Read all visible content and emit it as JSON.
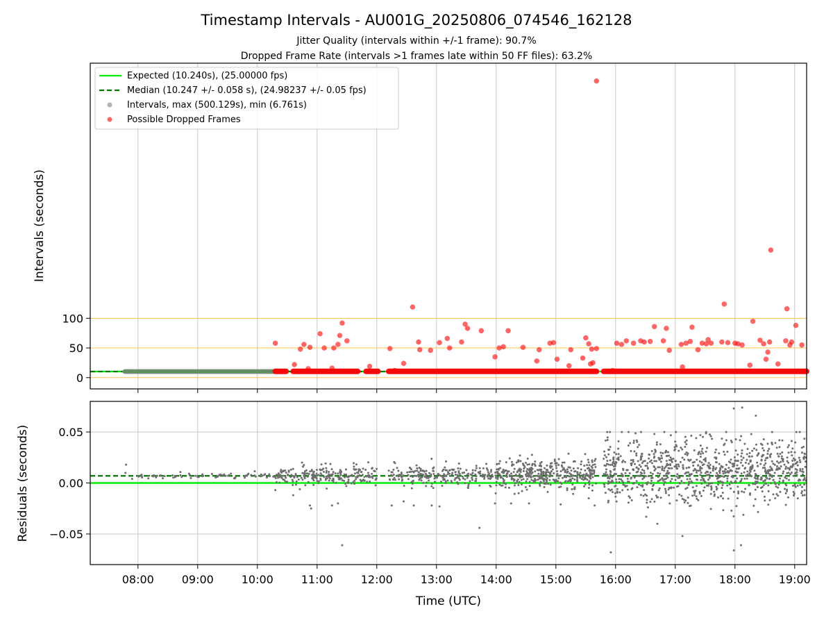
{
  "colors": {
    "expected": "#00ee00",
    "median": "#007700",
    "intervals": "#9a9a9a",
    "dropped": "#ff0000",
    "residuals": "#6e6e6e",
    "threshold": "#ffc04d",
    "grid": "#c8c8c8"
  },
  "chart_data": [
    {
      "type": "scatter",
      "title": "Timestamp Intervals - AU001G_20250806_074546_162128",
      "subtitle_lines": [
        "Jitter Quality (intervals within +/-1 frame): 90.7%",
        "Dropped Frame Rate (intervals >1 frames late within 50 FF files): 63.2%"
      ],
      "ylabel": "Intervals (seconds)",
      "xlabel": "",
      "x_unit": "hours UTC",
      "xlim": [
        7.2,
        19.2
      ],
      "ylim": [
        -19,
        530
      ],
      "yticks": [
        0,
        50,
        100
      ],
      "ytick_labels": [
        "0",
        "50",
        "100"
      ],
      "hlines_threshold": [
        0,
        50,
        100
      ],
      "grid": "vertical",
      "legend_placement": "top-left",
      "legend": [
        "Expected (10.240s), (25.00000 fps)",
        "Median (10.247 +/- 0.058 s), (24.98237 +/- 0.05 fps)",
        "Intervals, max (500.129s), min (6.761s)",
        "Possible Dropped Frames"
      ],
      "expected_value": 10.24,
      "median_value": 10.247,
      "series": [
        {
          "name": "Intervals, max (500.129s), min (6.761s)",
          "segments": [
            [
              7.78,
              10.32
            ],
            [
              10.32,
              10.48
            ],
            [
              10.62,
              11.65
            ],
            [
              11.85,
              12.02
            ],
            [
              12.22,
              15.68
            ],
            [
              15.82,
              19.2
            ]
          ],
          "value": 10.24
        },
        {
          "name": "Possible Dropped Frames",
          "bands": [
            [
              10.3,
              10.48
            ],
            [
              10.6,
              11.68
            ],
            [
              11.82,
              12.02
            ],
            [
              12.2,
              15.68
            ],
            [
              15.8,
              19.2
            ]
          ],
          "band_value": 10.5,
          "points": [
            {
              "x": 10.3,
              "y": 58
            },
            {
              "x": 10.62,
              "y": 22
            },
            {
              "x": 10.72,
              "y": 48
            },
            {
              "x": 10.78,
              "y": 56
            },
            {
              "x": 10.88,
              "y": 51
            },
            {
              "x": 10.85,
              "y": 15
            },
            {
              "x": 11.05,
              "y": 74
            },
            {
              "x": 11.12,
              "y": 50
            },
            {
              "x": 11.28,
              "y": 50
            },
            {
              "x": 11.35,
              "y": 56
            },
            {
              "x": 11.38,
              "y": 71
            },
            {
              "x": 11.42,
              "y": 92
            },
            {
              "x": 11.5,
              "y": 62
            },
            {
              "x": 11.25,
              "y": 16
            },
            {
              "x": 11.88,
              "y": 19
            },
            {
              "x": 12.22,
              "y": 49
            },
            {
              "x": 12.3,
              "y": 12
            },
            {
              "x": 12.45,
              "y": 24
            },
            {
              "x": 12.6,
              "y": 119
            },
            {
              "x": 12.7,
              "y": 60
            },
            {
              "x": 12.72,
              "y": 47
            },
            {
              "x": 12.9,
              "y": 46
            },
            {
              "x": 13.05,
              "y": 59
            },
            {
              "x": 13.18,
              "y": 66
            },
            {
              "x": 13.22,
              "y": 50
            },
            {
              "x": 13.42,
              "y": 60
            },
            {
              "x": 13.48,
              "y": 90
            },
            {
              "x": 13.52,
              "y": 83
            },
            {
              "x": 13.75,
              "y": 79
            },
            {
              "x": 13.98,
              "y": 35
            },
            {
              "x": 14.05,
              "y": 50
            },
            {
              "x": 14.12,
              "y": 52
            },
            {
              "x": 14.2,
              "y": 79
            },
            {
              "x": 14.45,
              "y": 51
            },
            {
              "x": 14.68,
              "y": 28
            },
            {
              "x": 14.72,
              "y": 47
            },
            {
              "x": 14.9,
              "y": 58
            },
            {
              "x": 14.96,
              "y": 59
            },
            {
              "x": 15.02,
              "y": 31
            },
            {
              "x": 15.22,
              "y": 20
            },
            {
              "x": 15.25,
              "y": 47
            },
            {
              "x": 15.45,
              "y": 33
            },
            {
              "x": 15.5,
              "y": 67
            },
            {
              "x": 15.55,
              "y": 57
            },
            {
              "x": 15.58,
              "y": 23
            },
            {
              "x": 15.62,
              "y": 25
            },
            {
              "x": 15.6,
              "y": 48
            },
            {
              "x": 15.68,
              "y": 49
            },
            {
              "x": 15.68,
              "y": 500
            },
            {
              "x": 15.95,
              "y": 12
            },
            {
              "x": 16.02,
              "y": 58
            },
            {
              "x": 16.1,
              "y": 56
            },
            {
              "x": 16.18,
              "y": 62
            },
            {
              "x": 16.3,
              "y": 58
            },
            {
              "x": 16.42,
              "y": 62
            },
            {
              "x": 16.48,
              "y": 60
            },
            {
              "x": 16.58,
              "y": 61
            },
            {
              "x": 16.65,
              "y": 86
            },
            {
              "x": 16.8,
              "y": 62
            },
            {
              "x": 16.85,
              "y": 83
            },
            {
              "x": 16.9,
              "y": 46
            },
            {
              "x": 17.1,
              "y": 56
            },
            {
              "x": 17.18,
              "y": 58
            },
            {
              "x": 17.25,
              "y": 61
            },
            {
              "x": 17.28,
              "y": 85
            },
            {
              "x": 17.38,
              "y": 47
            },
            {
              "x": 17.45,
              "y": 58
            },
            {
              "x": 17.52,
              "y": 57
            },
            {
              "x": 17.55,
              "y": 64
            },
            {
              "x": 17.6,
              "y": 58
            },
            {
              "x": 17.82,
              "y": 124
            },
            {
              "x": 17.78,
              "y": 60
            },
            {
              "x": 17.88,
              "y": 59
            },
            {
              "x": 18.0,
              "y": 58
            },
            {
              "x": 18.05,
              "y": 57
            },
            {
              "x": 18.12,
              "y": 55
            },
            {
              "x": 18.25,
              "y": 21
            },
            {
              "x": 18.3,
              "y": 95
            },
            {
              "x": 18.42,
              "y": 63
            },
            {
              "x": 18.48,
              "y": 57
            },
            {
              "x": 18.52,
              "y": 31
            },
            {
              "x": 18.55,
              "y": 43
            },
            {
              "x": 18.58,
              "y": 60
            },
            {
              "x": 18.6,
              "y": 215
            },
            {
              "x": 18.72,
              "y": 23
            },
            {
              "x": 18.85,
              "y": 62
            },
            {
              "x": 18.87,
              "y": 116
            },
            {
              "x": 18.92,
              "y": 55
            },
            {
              "x": 18.95,
              "y": 60
            },
            {
              "x": 19.02,
              "y": 88
            },
            {
              "x": 19.12,
              "y": 55
            },
            {
              "x": 17.12,
              "y": 18
            }
          ]
        }
      ]
    },
    {
      "type": "scatter",
      "ylabel": "Residuals (seconds)",
      "xlabel": "Time (UTC)",
      "x_unit": "hours UTC",
      "xlim": [
        7.2,
        19.2
      ],
      "ylim": [
        -0.08,
        0.08
      ],
      "yticks": [
        -0.05,
        0,
        0.05
      ],
      "ytick_labels": [
        "−0.05",
        "0.00",
        "0.05"
      ],
      "xticks": [
        8,
        9,
        10,
        11,
        12,
        13,
        14,
        15,
        16,
        17,
        18,
        19
      ],
      "xtick_labels": [
        "08:00",
        "09:00",
        "10:00",
        "11:00",
        "12:00",
        "13:00",
        "14:00",
        "15:00",
        "16:00",
        "17:00",
        "18:00",
        "19:00"
      ],
      "grid": "both",
      "expected_value": 0,
      "median_value": 0.007,
      "series": [
        {
          "name": "Residuals",
          "clusters": [
            {
              "x": [
                7.78,
                10.3
              ],
              "center": 0.007,
              "spread": 0.0015,
              "count": 70
            },
            {
              "x": [
                10.3,
                12.0
              ],
              "center": 0.007,
              "spread": 0.005,
              "count": 230
            },
            {
              "x": [
                12.2,
                13.98
              ],
              "center": 0.007,
              "spread": 0.005,
              "count": 230
            },
            {
              "x": [
                13.98,
                15.68
              ],
              "center": 0.008,
              "spread": 0.007,
              "count": 420
            },
            {
              "x": [
                15.8,
                19.2
              ],
              "center": 0.012,
              "spread": 0.016,
              "count": 950
            }
          ],
          "outliers": [
            {
              "x": 7.8,
              "y": 0.018
            },
            {
              "x": 10.3,
              "y": -0.007
            },
            {
              "x": 10.6,
              "y": -0.012
            },
            {
              "x": 10.88,
              "y": -0.022
            },
            {
              "x": 10.9,
              "y": -0.025
            },
            {
              "x": 11.25,
              "y": -0.022
            },
            {
              "x": 11.35,
              "y": -0.02
            },
            {
              "x": 11.42,
              "y": -0.061
            },
            {
              "x": 12.25,
              "y": -0.022
            },
            {
              "x": 12.45,
              "y": -0.018
            },
            {
              "x": 12.62,
              "y": -0.022
            },
            {
              "x": 12.92,
              "y": -0.022
            },
            {
              "x": 13.05,
              "y": -0.023
            },
            {
              "x": 13.72,
              "y": -0.044
            },
            {
              "x": 13.98,
              "y": -0.02
            },
            {
              "x": 14.25,
              "y": -0.02
            },
            {
              "x": 14.55,
              "y": -0.02
            },
            {
              "x": 15.08,
              "y": -0.021
            },
            {
              "x": 15.55,
              "y": -0.015
            },
            {
              "x": 15.65,
              "y": -0.022
            },
            {
              "x": 15.92,
              "y": -0.068
            },
            {
              "x": 16.7,
              "y": -0.04
            },
            {
              "x": 17.12,
              "y": -0.052
            },
            {
              "x": 17.98,
              "y": -0.066
            },
            {
              "x": 18.1,
              "y": -0.061
            },
            {
              "x": 17.98,
              "y": 0.073
            },
            {
              "x": 18.12,
              "y": 0.074
            },
            {
              "x": 18.35,
              "y": 0.066
            },
            {
              "x": 16.65,
              "y": 0.048
            },
            {
              "x": 17.35,
              "y": 0.044
            }
          ]
        }
      ]
    }
  ]
}
